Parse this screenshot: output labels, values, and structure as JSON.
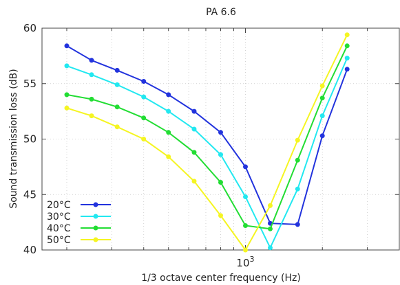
{
  "chart_data": {
    "type": "line",
    "title": "PA 6.6",
    "xlabel": "1/3 octave center frequency (Hz)",
    "ylabel": "Sound transmission loss (dB)",
    "x_scale": "log",
    "x": [
      200,
      250,
      315,
      400,
      500,
      630,
      800,
      1000,
      1250,
      1600,
      2000,
      2500,
      3150
    ],
    "xlim": [
      160,
      4000
    ],
    "ylim": [
      40,
      60
    ],
    "yticks": [
      40,
      45,
      50,
      55,
      60
    ],
    "xtick_major": {
      "value": 1000,
      "base": "10",
      "exponent": "3"
    },
    "grid": true,
    "legend_position": "bottom-left",
    "series": [
      {
        "name": "20°C",
        "color": "#2233dd",
        "values": [
          58.4,
          57.1,
          56.2,
          55.2,
          54.0,
          52.5,
          50.6,
          47.5,
          42.4,
          42.3,
          50.3,
          56.3,
          null
        ]
      },
      {
        "name": "30°C",
        "color": "#22e8f0",
        "values": [
          56.6,
          55.8,
          54.9,
          53.8,
          52.5,
          50.9,
          48.6,
          44.8,
          40.2,
          45.5,
          52.1,
          57.3,
          null
        ]
      },
      {
        "name": "40°C",
        "color": "#22dd33",
        "values": [
          54.0,
          53.6,
          52.9,
          51.9,
          50.6,
          48.8,
          46.1,
          42.2,
          41.9,
          48.1,
          53.7,
          58.4,
          null
        ]
      },
      {
        "name": "50°C",
        "color": "#f5f522",
        "values": [
          52.8,
          52.1,
          51.1,
          50.0,
          48.4,
          46.2,
          43.1,
          40.0,
          44.0,
          49.9,
          54.8,
          59.4,
          null
        ]
      }
    ]
  }
}
